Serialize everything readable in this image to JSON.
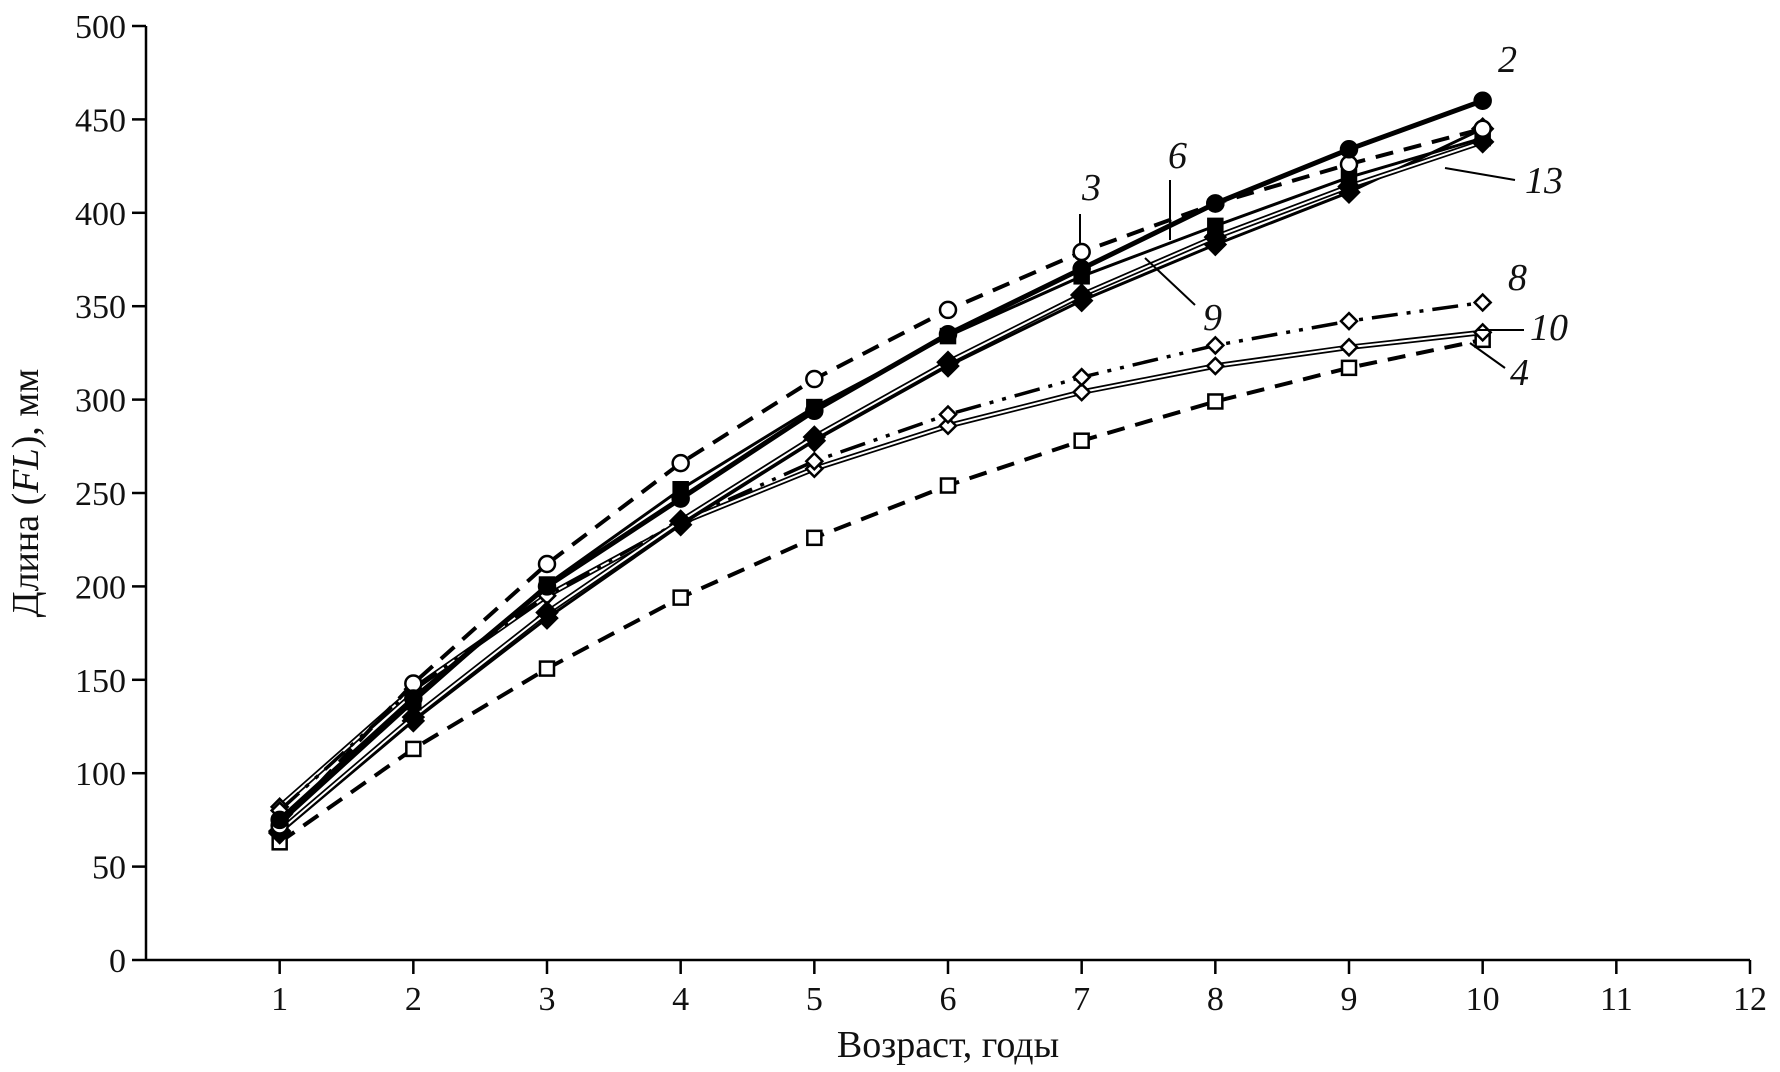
{
  "chart_data": {
    "type": "line",
    "xlabel": "Возраст, годы",
    "ylabel_parts": [
      "Длина (",
      "FL",
      "), мм"
    ],
    "xlim": [
      0,
      12
    ],
    "ylim": [
      0,
      500
    ],
    "xticks": [
      1,
      2,
      3,
      4,
      5,
      6,
      7,
      8,
      9,
      10,
      11,
      12
    ],
    "yticks": [
      0,
      50,
      100,
      150,
      200,
      250,
      300,
      350,
      400,
      450,
      500
    ],
    "grid": false,
    "x": [
      1,
      2,
      3,
      4,
      5,
      6,
      7,
      8,
      9,
      10
    ],
    "series": [
      {
        "name": "2",
        "values": [
          75,
          140,
          200,
          247,
          294,
          335,
          370,
          405,
          434,
          460
        ],
        "color": "#000000",
        "line": "solid-thick",
        "marker": "circle-filled"
      },
      {
        "name": "3",
        "values": [
          72,
          148,
          212,
          266,
          311,
          348,
          379,
          405,
          426,
          445
        ],
        "color": "#000000",
        "line": "dashed",
        "marker": "circle-open"
      },
      {
        "name": "6",
        "values": [
          73,
          138,
          201,
          252,
          296,
          334,
          366,
          393,
          419,
          440
        ],
        "color": "#000000",
        "line": "solid",
        "marker": "square-filled"
      },
      {
        "name": "9",
        "values": [
          69,
          130,
          186,
          235,
          280,
          320,
          356,
          387,
          414,
          438
        ],
        "color": "#000000",
        "line": "double",
        "marker": "diamond-filled"
      },
      {
        "name": "13",
        "values": [
          68,
          128,
          183,
          233,
          278,
          318,
          353,
          383,
          411,
          445
        ],
        "color": "#000000",
        "line": "solid",
        "marker": "diamond-filled"
      },
      {
        "name": "8",
        "values": [
          80,
          145,
          195,
          235,
          267,
          292,
          312,
          329,
          342,
          352
        ],
        "color": "#000000",
        "line": "dash-dot-dot",
        "marker": "diamond-open"
      },
      {
        "name": "10",
        "values": [
          82,
          145,
          195,
          234,
          263,
          286,
          304,
          318,
          328,
          336
        ],
        "color": "#000000",
        "line": "double",
        "marker": "diamond-open"
      },
      {
        "name": "4",
        "values": [
          63,
          113,
          156,
          194,
          226,
          254,
          278,
          299,
          317,
          332
        ],
        "color": "#000000",
        "line": "dashed",
        "marker": "square-open"
      }
    ]
  }
}
